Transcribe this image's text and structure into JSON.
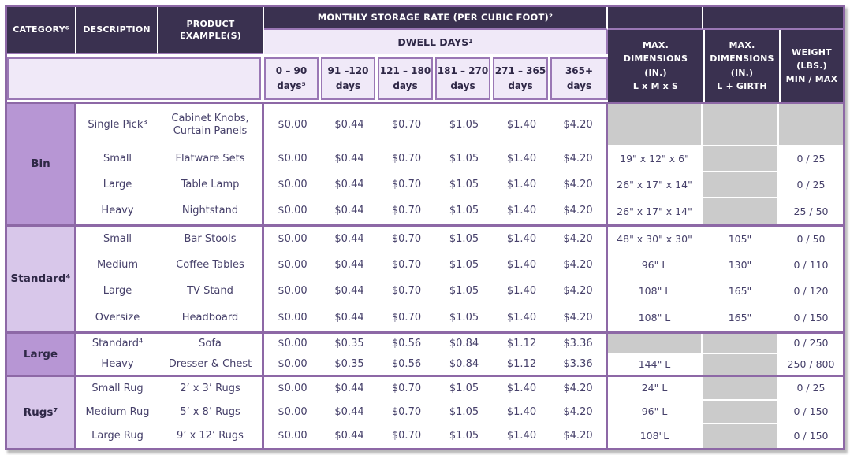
{
  "colors": {
    "dark_header_bg": "#3a3150",
    "header_text": "#ffffff",
    "lavender_bg": "#f0e9f8",
    "border_purple": "#9a77b5",
    "outer_border": "#8d68a6",
    "category_medium": "#b796d4",
    "category_light": "#d8c7ea",
    "empty_cell_gray": "#cbcbcb",
    "body_text": "#46406a",
    "category_text": "#2f2847"
  },
  "table": {
    "header": {
      "category": "CATEGORY⁶",
      "description": "DESCRIPTION",
      "product": "PRODUCT\nEXAMPLE(S)",
      "monthly_rate": "MONTHLY STORAGE RATE (PER CUBIC FOOT)²",
      "dwell_days": "DWELL DAYS¹",
      "day_columns": [
        "0 – 90\ndays⁵",
        "91 –120\ndays",
        "121 – 180\ndays",
        "181 – 270\ndays",
        "271 – 365\ndays",
        "365+\ndays"
      ],
      "max_dims_lms": "MAX.\nDIMENSIONS\n(IN.)\nL x M x S",
      "max_dims_girth": "MAX.\nDIMENSIONS\n(IN.)\nL + GIRTH",
      "weight": "WEIGHT\n(LBS.)\nMIN / MAX"
    },
    "sections": [
      {
        "category": "Bin",
        "shade": "medium",
        "rows": [
          {
            "description": "Single Pick³",
            "product": "Cabinet Knobs,\nCurtain Panels",
            "rates": [
              "$0.00",
              "$0.44",
              "$0.70",
              "$1.05",
              "$1.40",
              "$4.20"
            ],
            "dims": "",
            "girth": "",
            "weight": ""
          },
          {
            "description": "Small",
            "product": "Flatware Sets",
            "rates": [
              "$0.00",
              "$0.44",
              "$0.70",
              "$1.05",
              "$1.40",
              "$4.20"
            ],
            "dims": "19\" x 12\" x 6\"",
            "girth": "",
            "weight": "0 / 25"
          },
          {
            "description": "Large",
            "product": "Table Lamp",
            "rates": [
              "$0.00",
              "$0.44",
              "$0.70",
              "$1.05",
              "$1.40",
              "$4.20"
            ],
            "dims": "26\" x 17\" x 14\"",
            "girth": "",
            "weight": "0 / 25"
          },
          {
            "description": "Heavy",
            "product": "Nightstand",
            "rates": [
              "$0.00",
              "$0.44",
              "$0.70",
              "$1.05",
              "$1.40",
              "$4.20"
            ],
            "dims": "26\" x 17\" x 14\"",
            "girth": "",
            "weight": "25 / 50"
          }
        ]
      },
      {
        "category": "Standard⁴",
        "shade": "light",
        "rows": [
          {
            "description": "Small",
            "product": "Bar Stools",
            "rates": [
              "$0.00",
              "$0.44",
              "$0.70",
              "$1.05",
              "$1.40",
              "$4.20"
            ],
            "dims": "48\" x 30\" x 30\"",
            "girth": "105\"",
            "weight": "0 / 50"
          },
          {
            "description": "Medium",
            "product": "Coffee Tables",
            "rates": [
              "$0.00",
              "$0.44",
              "$0.70",
              "$1.05",
              "$1.40",
              "$4.20"
            ],
            "dims": "96\" L",
            "girth": "130\"",
            "weight": "0 / 110"
          },
          {
            "description": "Large",
            "product": "TV Stand",
            "rates": [
              "$0.00",
              "$0.44",
              "$0.70",
              "$1.05",
              "$1.40",
              "$4.20"
            ],
            "dims": "108\" L",
            "girth": "165\"",
            "weight": "0 / 120"
          },
          {
            "description": "Oversize",
            "product": "Headboard",
            "rates": [
              "$0.00",
              "$0.44",
              "$0.70",
              "$1.05",
              "$1.40",
              "$4.20"
            ],
            "dims": "108\" L",
            "girth": "165\"",
            "weight": "0 / 150"
          }
        ]
      },
      {
        "category": "Large",
        "shade": "medium",
        "rows": [
          {
            "description": "Standard⁴",
            "product": "Sofa",
            "rates": [
              "$0.00",
              "$0.35",
              "$0.56",
              "$0.84",
              "$1.12",
              "$3.36"
            ],
            "dims": "",
            "girth": "",
            "weight": "0 / 250"
          },
          {
            "description": "Heavy",
            "product": "Dresser & Chest",
            "rates": [
              "$0.00",
              "$0.35",
              "$0.56",
              "$0.84",
              "$1.12",
              "$3.36"
            ],
            "dims": "144\" L",
            "girth": "",
            "weight": "250 / 800"
          }
        ]
      },
      {
        "category": "Rugs⁷",
        "shade": "light",
        "rows": [
          {
            "description": "Small Rug",
            "product": "2’ x 3’ Rugs",
            "rates": [
              "$0.00",
              "$0.44",
              "$0.70",
              "$1.05",
              "$1.40",
              "$4.20"
            ],
            "dims": "24\" L",
            "girth": "",
            "weight": "0 / 25"
          },
          {
            "description": "Medium Rug",
            "product": "5’ x 8’ Rugs",
            "rates": [
              "$0.00",
              "$0.44",
              "$0.70",
              "$1.05",
              "$1.40",
              "$4.20"
            ],
            "dims": "96\" L",
            "girth": "",
            "weight": "0 / 150"
          },
          {
            "description": "Large Rug",
            "product": "9’ x 12’ Rugs",
            "rates": [
              "$0.00",
              "$0.44",
              "$0.70",
              "$1.05",
              "$1.40",
              "$4.20"
            ],
            "dims": "108\"L",
            "girth": "",
            "weight": "0 / 150"
          }
        ]
      }
    ]
  }
}
